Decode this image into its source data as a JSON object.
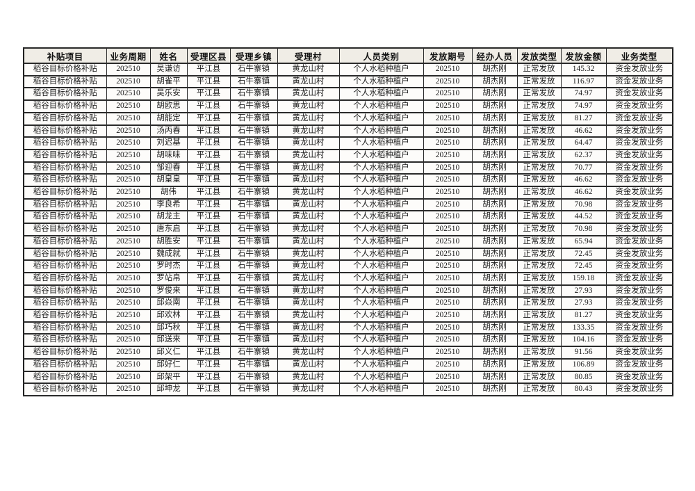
{
  "page": {
    "background": "#ffffff"
  },
  "table": {
    "title_semantic": "subsidy-disbursement-table",
    "colors": {
      "header_bg": "#f0ede6",
      "cell_bg": "#fdfcfa",
      "border": "#2a2a2a",
      "text": "#1c1c1c"
    },
    "columns": [
      "补贴项目",
      "业务周期",
      "姓名",
      "受理区县",
      "受理乡镇",
      "受理村",
      "人员类别",
      "发放期号",
      "经办人员",
      "发放类型",
      "发放金额",
      "业务类型"
    ],
    "column_keys": [
      "subsidy-project",
      "business-period",
      "name",
      "district-county",
      "township",
      "village",
      "person-category",
      "issue-period",
      "operator",
      "issue-type",
      "issue-amount",
      "business-type"
    ],
    "rows": [
      [
        "稻谷目标价格补贴",
        "202510",
        "吴谦访",
        "平江县",
        "石牛寨镇",
        "黄龙山村",
        "个人水稻种植户",
        "202510",
        "胡杰刚",
        "正常发放",
        "145.32",
        "资金发放业务"
      ],
      [
        "稻谷目标价格补贴",
        "202510",
        "胡雀平",
        "平江县",
        "石牛寨镇",
        "黄龙山村",
        "个人水稻种植户",
        "202510",
        "胡杰刚",
        "正常发放",
        "116.97",
        "资金发放业务"
      ],
      [
        "稻谷目标价格补贴",
        "202510",
        "吴乐安",
        "平江县",
        "石牛寨镇",
        "黄龙山村",
        "个人水稻种植户",
        "202510",
        "胡杰刚",
        "正常发放",
        "74.97",
        "资金发放业务"
      ],
      [
        "稻谷目标价格补贴",
        "202510",
        "胡欧思",
        "平江县",
        "石牛寨镇",
        "黄龙山村",
        "个人水稻种植户",
        "202510",
        "胡杰刚",
        "正常发放",
        "74.97",
        "资金发放业务"
      ],
      [
        "稻谷目标价格补贴",
        "202510",
        "胡能定",
        "平江县",
        "石牛寨镇",
        "黄龙山村",
        "个人水稻种植户",
        "202510",
        "胡杰刚",
        "正常发放",
        "81.27",
        "资金发放业务"
      ],
      [
        "稻谷目标价格补贴",
        "202510",
        "汤丙春",
        "平江县",
        "石牛寨镇",
        "黄龙山村",
        "个人水稻种植户",
        "202510",
        "胡杰刚",
        "正常发放",
        "46.62",
        "资金发放业务"
      ],
      [
        "稻谷目标价格补贴",
        "202510",
        "刘迟基",
        "平江县",
        "石牛寨镇",
        "黄龙山村",
        "个人水稻种植户",
        "202510",
        "胡杰刚",
        "正常发放",
        "64.47",
        "资金发放业务"
      ],
      [
        "稻谷目标价格补贴",
        "202510",
        "胡味味",
        "平江县",
        "石牛寨镇",
        "黄龙山村",
        "个人水稻种植户",
        "202510",
        "胡杰刚",
        "正常发放",
        "62.37",
        "资金发放业务"
      ],
      [
        "稻谷目标价格补贴",
        "202510",
        "邹迎春",
        "平江县",
        "石牛寨镇",
        "黄龙山村",
        "个人水稻种植户",
        "202510",
        "胡杰刚",
        "正常发放",
        "70.77",
        "资金发放业务"
      ],
      [
        "稻谷目标价格补贴",
        "202510",
        "胡皇皇",
        "平江县",
        "石牛寨镇",
        "黄龙山村",
        "个人水稻种植户",
        "202510",
        "胡杰刚",
        "正常发放",
        "46.62",
        "资金发放业务"
      ],
      [
        "稻谷目标价格补贴",
        "202510",
        "胡伟",
        "平江县",
        "石牛寨镇",
        "黄龙山村",
        "个人水稻种植户",
        "202510",
        "胡杰刚",
        "正常发放",
        "46.62",
        "资金发放业务"
      ],
      [
        "稻谷目标价格补贴",
        "202510",
        "李良希",
        "平江县",
        "石牛寨镇",
        "黄龙山村",
        "个人水稻种植户",
        "202510",
        "胡杰刚",
        "正常发放",
        "70.98",
        "资金发放业务"
      ],
      [
        "稻谷目标价格补贴",
        "202510",
        "胡龙主",
        "平江县",
        "石牛寨镇",
        "黄龙山村",
        "个人水稻种植户",
        "202510",
        "胡杰刚",
        "正常发放",
        "44.52",
        "资金发放业务"
      ],
      [
        "稻谷目标价格补贴",
        "202510",
        "唐东启",
        "平江县",
        "石牛寨镇",
        "黄龙山村",
        "个人水稻种植户",
        "202510",
        "胡杰刚",
        "正常发放",
        "70.98",
        "资金发放业务"
      ],
      [
        "稻谷目标价格补贴",
        "202510",
        "胡胜安",
        "平江县",
        "石牛寨镇",
        "黄龙山村",
        "个人水稻种植户",
        "202510",
        "胡杰刚",
        "正常发放",
        "65.94",
        "资金发放业务"
      ],
      [
        "稻谷目标价格补贴",
        "202510",
        "魏成就",
        "平江县",
        "石牛寨镇",
        "黄龙山村",
        "个人水稻种植户",
        "202510",
        "胡杰刚",
        "正常发放",
        "72.45",
        "资金发放业务"
      ],
      [
        "稻谷目标价格补贴",
        "202510",
        "罗时杰",
        "平江县",
        "石牛寨镇",
        "黄龙山村",
        "个人水稻种植户",
        "202510",
        "胡杰刚",
        "正常发放",
        "72.45",
        "资金发放业务"
      ],
      [
        "稻谷目标价格补贴",
        "202510",
        "罗站帛",
        "平江县",
        "石牛寨镇",
        "黄龙山村",
        "个人水稻种植户",
        "202510",
        "胡杰刚",
        "正常发放",
        "159.18",
        "资金发放业务"
      ],
      [
        "稻谷目标价格补贴",
        "202510",
        "罗俊来",
        "平江县",
        "石牛寨镇",
        "黄龙山村",
        "个人水稻种植户",
        "202510",
        "胡杰刚",
        "正常发放",
        "27.93",
        "资金发放业务"
      ],
      [
        "稻谷目标价格补贴",
        "202510",
        "邱焱南",
        "平江县",
        "石牛寨镇",
        "黄龙山村",
        "个人水稻种植户",
        "202510",
        "胡杰刚",
        "正常发放",
        "27.93",
        "资金发放业务"
      ],
      [
        "稻谷目标价格补贴",
        "202510",
        "邱欢林",
        "平江县",
        "石牛寨镇",
        "黄龙山村",
        "个人水稻种植户",
        "202510",
        "胡杰刚",
        "正常发放",
        "81.27",
        "资金发放业务"
      ],
      [
        "稻谷目标价格补贴",
        "202510",
        "邱巧秋",
        "平江县",
        "石牛寨镇",
        "黄龙山村",
        "个人水稻种植户",
        "202510",
        "胡杰刚",
        "正常发放",
        "133.35",
        "资金发放业务"
      ],
      [
        "稻谷目标价格补贴",
        "202510",
        "邱送来",
        "平江县",
        "石牛寨镇",
        "黄龙山村",
        "个人水稻种植户",
        "202510",
        "胡杰刚",
        "正常发放",
        "104.16",
        "资金发放业务"
      ],
      [
        "稻谷目标价格补贴",
        "202510",
        "邱义仁",
        "平江县",
        "石牛寨镇",
        "黄龙山村",
        "个人水稻种植户",
        "202510",
        "胡杰刚",
        "正常发放",
        "91.56",
        "资金发放业务"
      ],
      [
        "稻谷目标价格补贴",
        "202510",
        "邱好仁",
        "平江县",
        "石牛寨镇",
        "黄龙山村",
        "个人水稻种植户",
        "202510",
        "胡杰刚",
        "正常发放",
        "106.89",
        "资金发放业务"
      ],
      [
        "稻谷目标价格补贴",
        "202510",
        "邱架平",
        "平江县",
        "石牛寨镇",
        "黄龙山村",
        "个人水稻种植户",
        "202510",
        "胡杰刚",
        "正常发放",
        "80.85",
        "资金发放业务"
      ],
      [
        "稻谷目标价格补贴",
        "202510",
        "邱坤龙",
        "平江县",
        "石牛寨镇",
        "黄龙山村",
        "个人水稻种植户",
        "202510",
        "胡杰刚",
        "正常发放",
        "80.43",
        "资金发放业务"
      ]
    ]
  }
}
